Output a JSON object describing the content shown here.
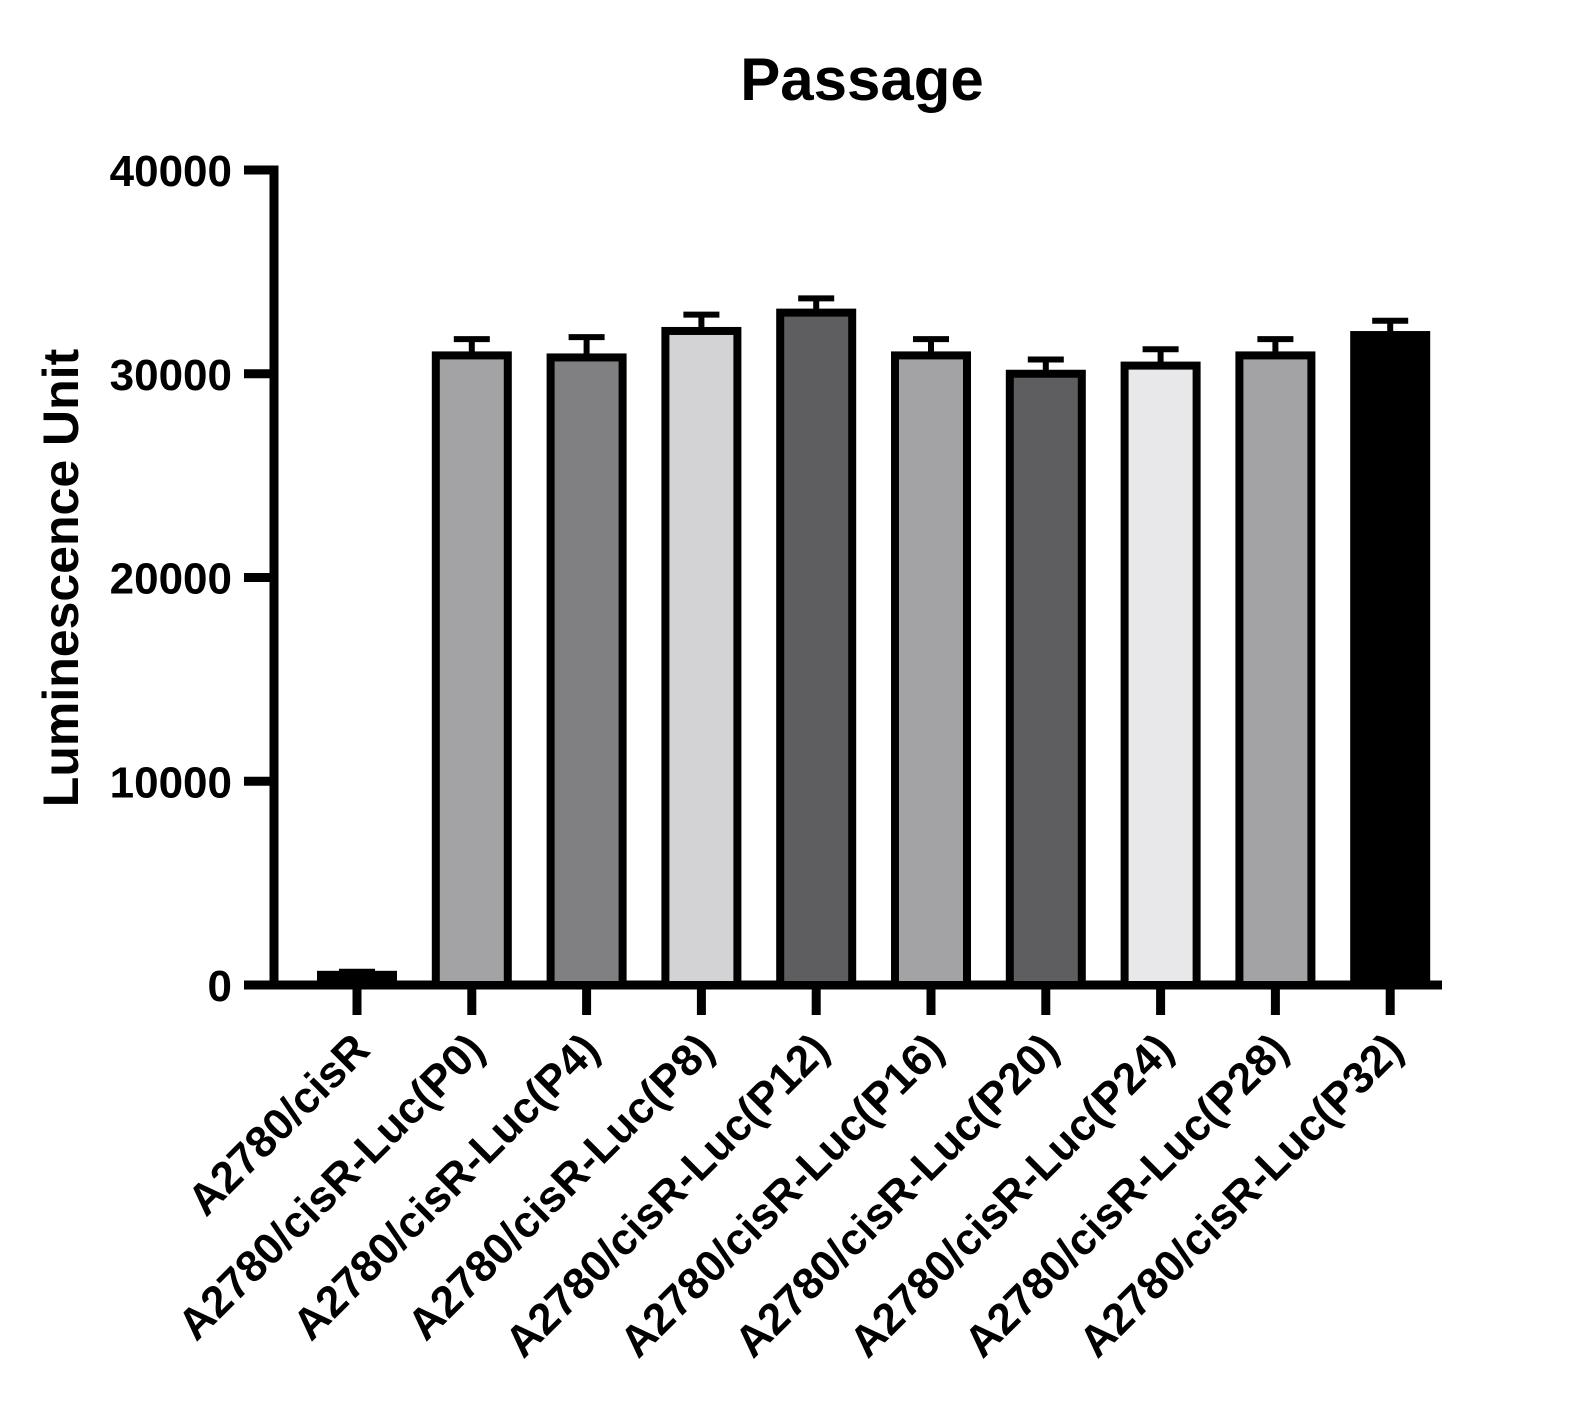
{
  "title": "Passage",
  "chart_data": {
    "type": "bar",
    "title": "Passage",
    "ylabel": "Luminescence Unit",
    "xlabel": "",
    "ylim": [
      0,
      40000
    ],
    "yticks": [
      0,
      10000,
      20000,
      30000,
      40000
    ],
    "grid": false,
    "legend": "none",
    "error_bars": "upper SD, T-cap",
    "categories": [
      "A2780/cisR",
      "A2780/cisR-Luc(P0)",
      "A2780/cisR-Luc(P4)",
      "A2780/cisR-Luc(P8)",
      "A2780/cisR-Luc(P12)",
      "A2780/cisR-Luc(P16)",
      "A2780/cisR-Luc(P20)",
      "A2780/cisR-Luc(P24)",
      "A2780/cisR-Luc(P28)",
      "A2780/cisR-Luc(P32)"
    ],
    "values": [
      500,
      30900,
      30800,
      32100,
      33000,
      30900,
      30000,
      30400,
      30900,
      31900
    ],
    "errors": [
      150,
      800,
      1000,
      800,
      700,
      800,
      700,
      800,
      800,
      700
    ],
    "bar_colors": [
      "#000000",
      "#a3a3a6",
      "#808083",
      "#d3d3d5",
      "#5e5e60",
      "#a3a3a6",
      "#5e5e60",
      "#e8e8ea",
      "#a3a3a6",
      "#000000"
    ],
    "bar_border_color": "#000000",
    "axis_color": "#000000"
  }
}
